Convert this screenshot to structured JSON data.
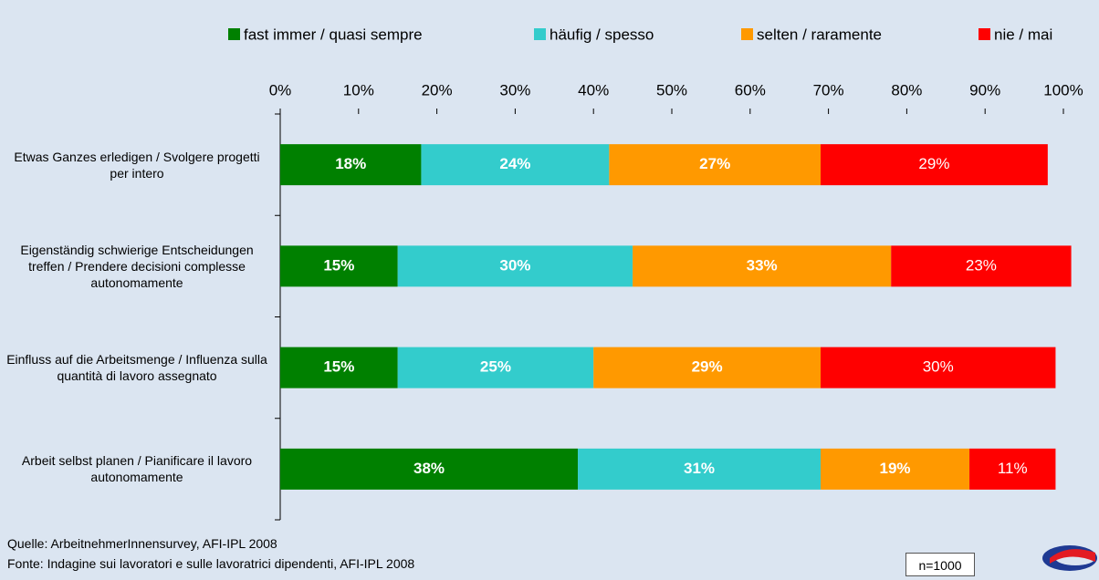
{
  "chart_data": {
    "type": "stacked_bar_horizontal",
    "categories": [
      "Etwas Ganzes erledigen / Svolgere progetti per intero",
      "Eigenständig schwierige Entscheidungen treffen / Prendere decisioni complesse autonomamente",
      "Einfluss auf die Arbeitsmenge / Influenza sulla quantità di lavoro assegnato",
      "Arbeit selbst planen / Pianificare il lavoro autonomamente"
    ],
    "series": [
      {
        "name": "fast immer / quasi sempre",
        "color": "#008000",
        "values": [
          18,
          15,
          15,
          38
        ],
        "value_labels": [
          "18%",
          "15%",
          "15%",
          "38%"
        ]
      },
      {
        "name": "häufig / spesso",
        "color": "#33cccc",
        "values": [
          24,
          30,
          25,
          31
        ],
        "value_labels": [
          "24%",
          "30%",
          "25%",
          "31%"
        ]
      },
      {
        "name": "selten / raramente",
        "color": "#ff9900",
        "values": [
          27,
          33,
          29,
          19
        ],
        "value_labels": [
          "27%",
          "33%",
          "29%",
          "19%"
        ]
      },
      {
        "name": "nie / mai",
        "color": "#ff0000",
        "values": [
          29,
          23,
          30,
          11
        ],
        "value_labels": [
          "29%",
          "23%",
          "30%",
          "11%"
        ]
      }
    ],
    "xlim": [
      0,
      100
    ],
    "xticks": [
      {
        "value": 0,
        "label": "0%"
      },
      {
        "value": 10,
        "label": "10%"
      },
      {
        "value": 20,
        "label": "20%"
      },
      {
        "value": 30,
        "label": "30%"
      },
      {
        "value": 40,
        "label": "40%"
      },
      {
        "value": 50,
        "label": "50%"
      },
      {
        "value": 60,
        "label": "60%"
      },
      {
        "value": 70,
        "label": "70%"
      },
      {
        "value": 80,
        "label": "80%"
      },
      {
        "value": 90,
        "label": "90%"
      },
      {
        "value": 100,
        "label": "100%"
      }
    ],
    "legend_position": "top",
    "sources": [
      "Quelle: ArbeitnehmerInnensurvey, AFI-IPL 2008",
      "Fonte: Indagine sui lavoratori e sulle lavoratrici dipendenti, AFI-IPL 2008"
    ],
    "sample_note": "n=1000"
  }
}
